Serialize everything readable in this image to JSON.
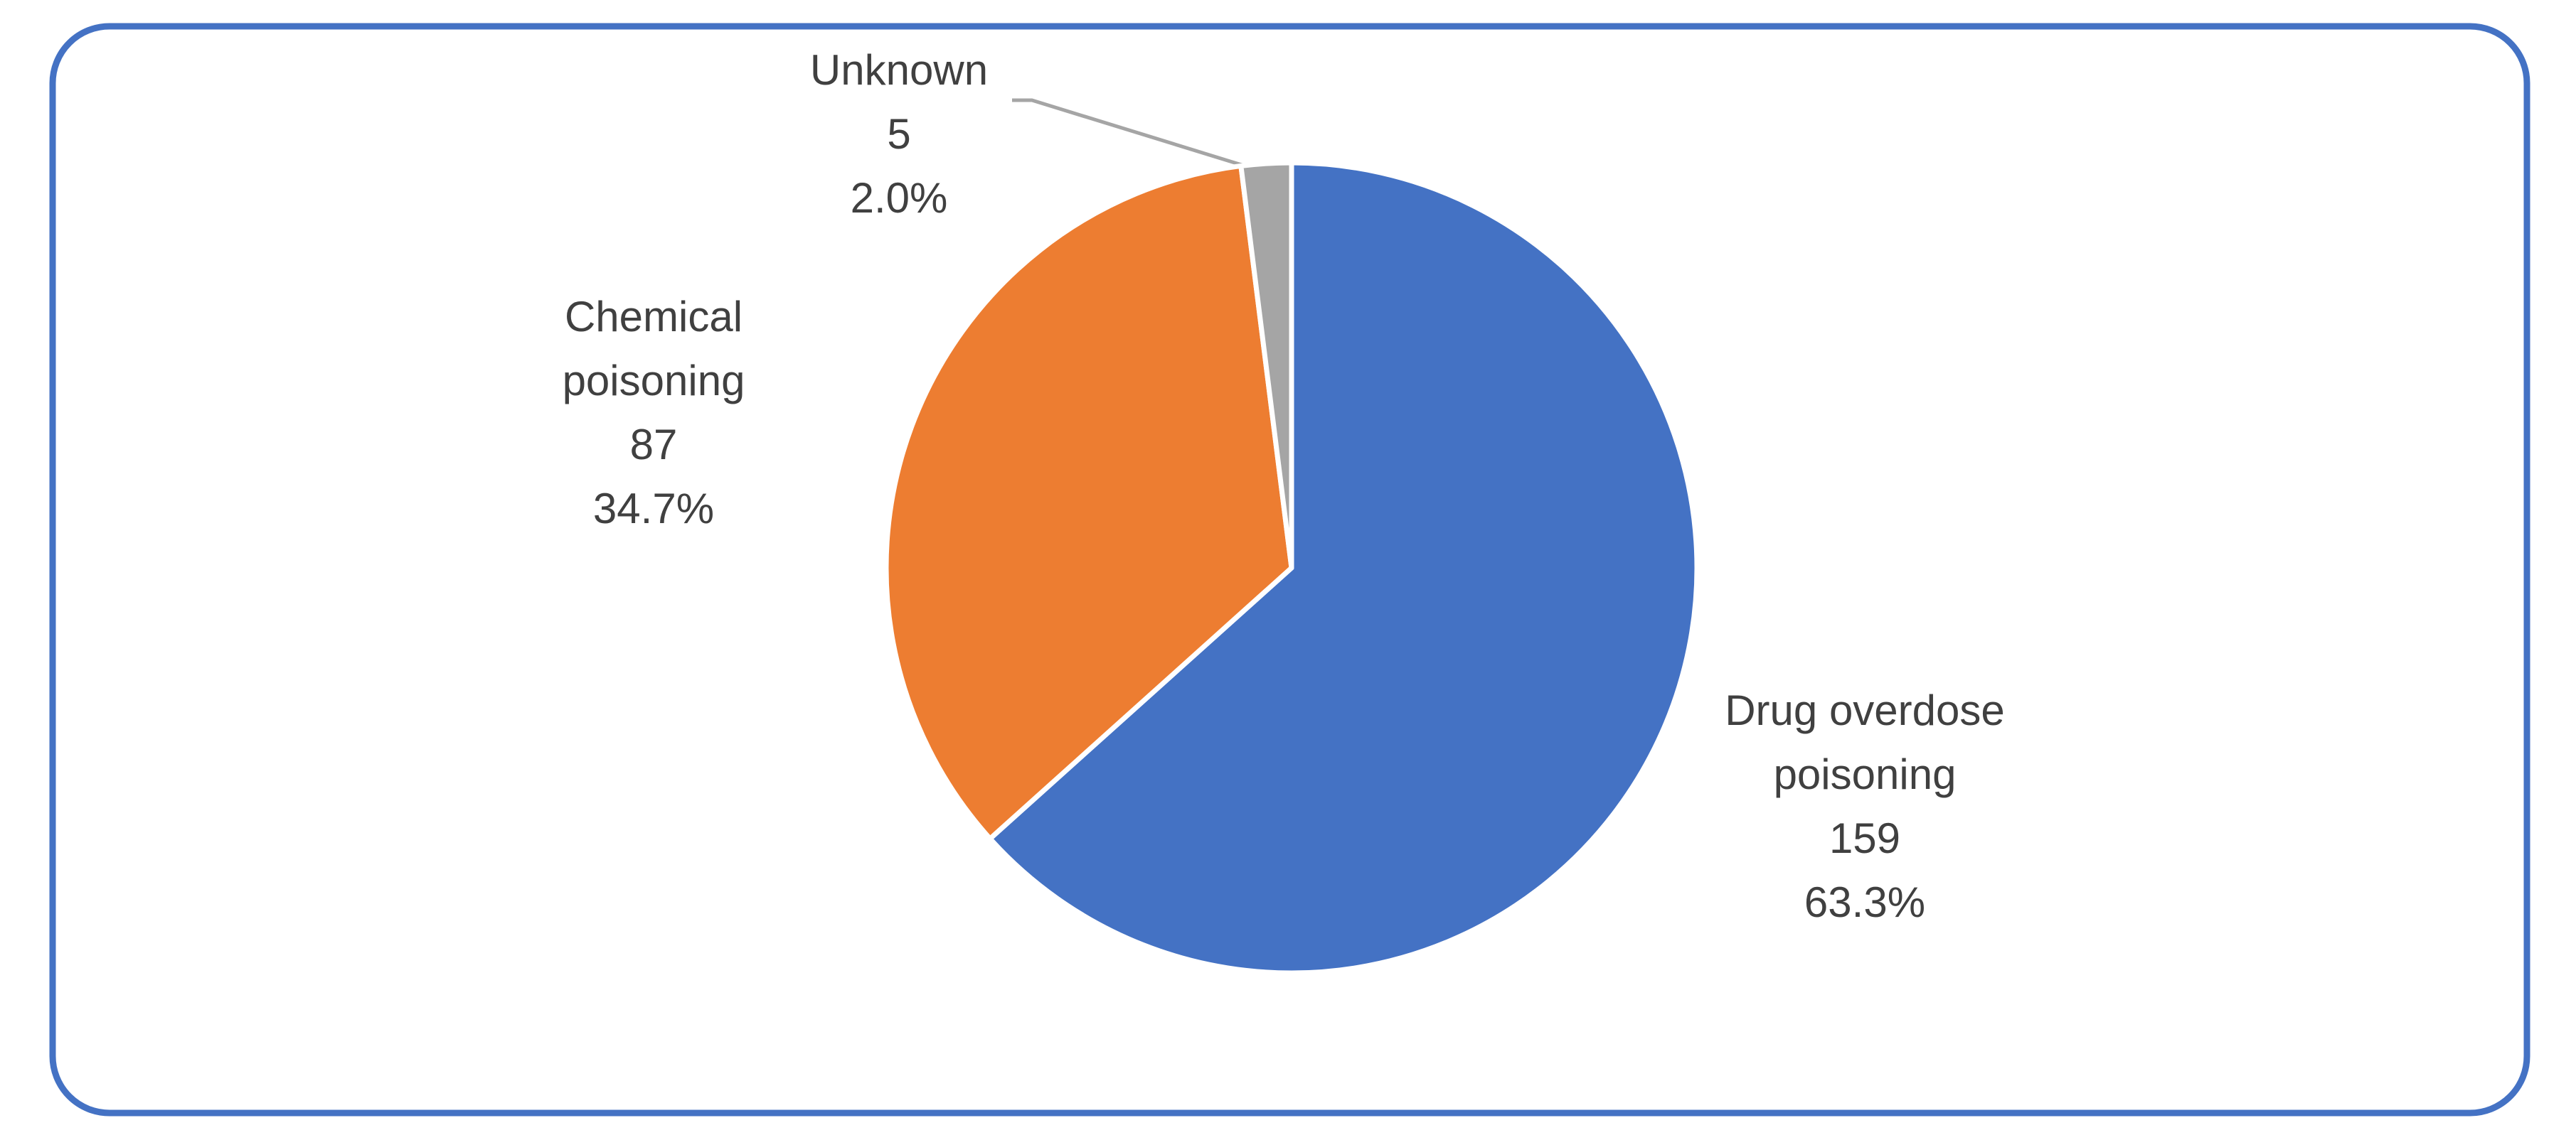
{
  "chart_data": {
    "type": "pie",
    "categories": [
      "Drug overdose poisoning",
      "Chemical poisoning",
      "Unknown"
    ],
    "values": [
      159,
      87,
      5
    ],
    "percent_labels": [
      "63.3%",
      "34.7%",
      "2.0%"
    ],
    "colors": [
      "#4472c4",
      "#ed7d31",
      "#a5a5a5"
    ]
  }
}
